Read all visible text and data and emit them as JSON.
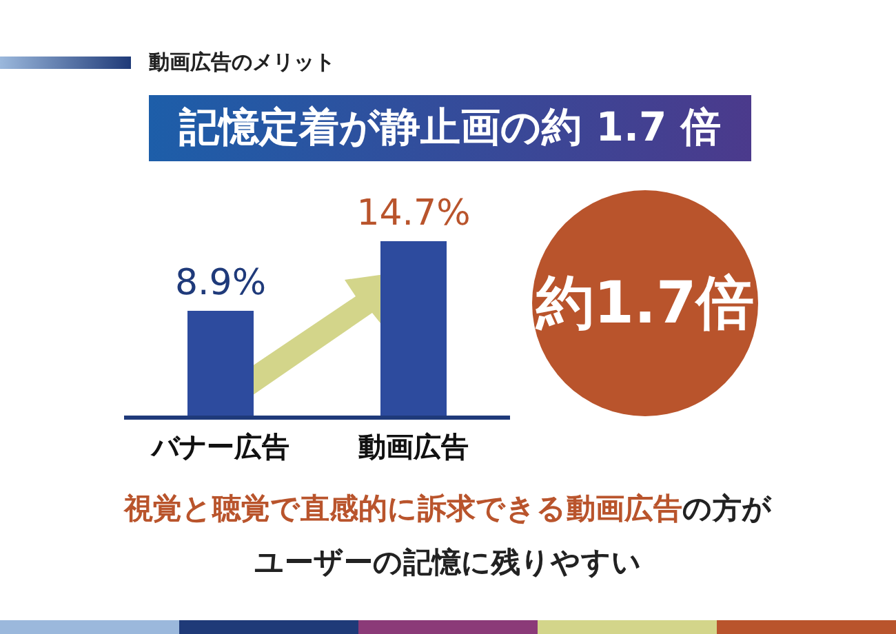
{
  "chart_data": {
    "type": "bar",
    "subtitle": "動画広告のメリット",
    "title": "記憶定着が静止画の約 1.7 倍",
    "categories": [
      "バナー広告",
      "動画広告"
    ],
    "values": [
      8.9,
      14.7
    ],
    "value_labels": [
      "8.9%",
      "14.7%"
    ],
    "color": "#2d4b9e",
    "annotations": [
      "約1.7倍",
      "視覚と聴覚で直感的に訴求できる動画広告",
      "の方が",
      "ユーザーの記憶に残りやすい"
    ]
  }
}
